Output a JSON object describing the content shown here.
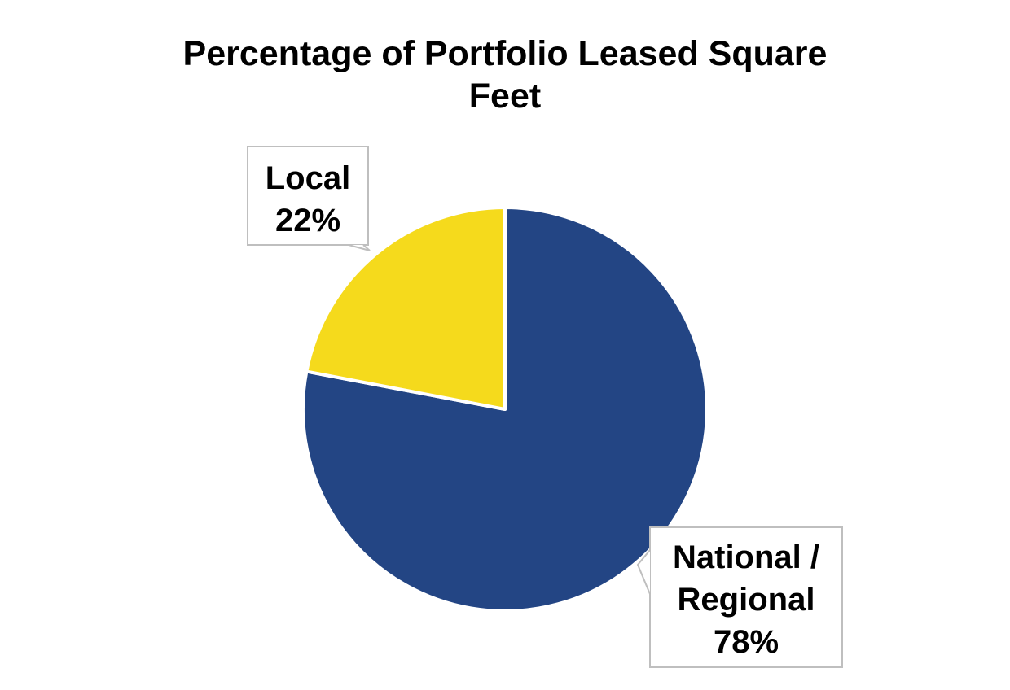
{
  "chart_data": {
    "type": "pie",
    "title_lines": [
      "Percentage of Portfolio Leased Square",
      "Feet"
    ],
    "slices": [
      {
        "name": "National / Regional",
        "value": 78,
        "color": "#234584",
        "label_lines": [
          "National /",
          "Regional",
          "78%"
        ]
      },
      {
        "name": "Local",
        "value": 22,
        "color": "#F5DA1C",
        "label_lines": [
          "Local",
          "22%"
        ]
      }
    ],
    "start": "12 o'clock",
    "direction": "clockwise",
    "slice_border_color": "#ffffff",
    "label_box_border_color": "#BFBFBF",
    "legend": "none"
  }
}
